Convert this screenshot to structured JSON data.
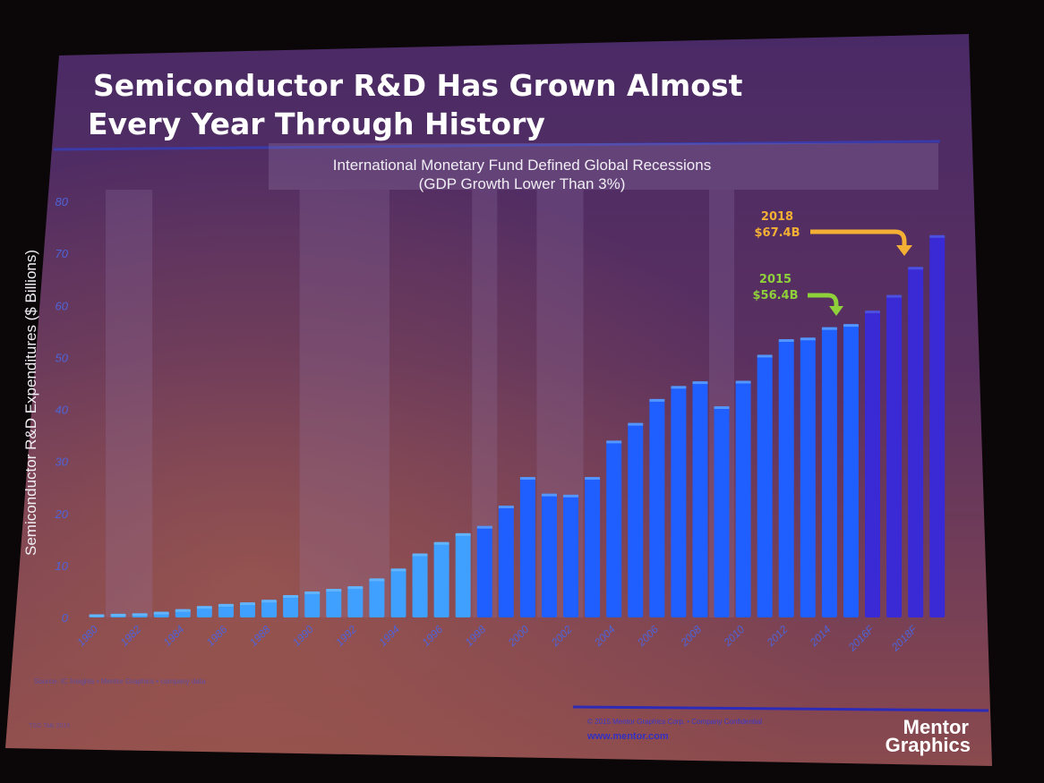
{
  "slide": {
    "title_line1": "Semiconductor R&D Has Grown Almost",
    "title_line2": "Every Year Through History",
    "source_note": "Source: IC Insights • Mentor Graphics • company data",
    "footer_copyright": "© 2015 Mentor Graphics Corp. • Company Confidential",
    "footer_url": "www.mentor.com",
    "footer_left": "TSG Talk 2015",
    "logo_line1": "Mentor",
    "logo_line2": "Graphics"
  },
  "colors": {
    "actual_bar": "#1f5eff",
    "actual_bar_light": "#3fa0ff",
    "forecast_bar": "#3a2ad6",
    "recession_band": "#9a7fb0",
    "title": "#ffffff",
    "callout_2018": "#f4b034",
    "callout_2015": "#8fd13a",
    "axis_text": "#4f63d8"
  },
  "chart_data": {
    "type": "bar",
    "title": "International Monetary Fund Defined Global Recessions",
    "subtitle": "(GDP Growth Lower Than 3%)",
    "ylabel": "Semiconductor R&D Expenditures ($ Billions)",
    "xlabel": "",
    "ylim": [
      0,
      80
    ],
    "yticks": [
      0,
      10,
      20,
      30,
      40,
      50,
      60,
      70,
      80
    ],
    "categories": [
      1980,
      1981,
      1982,
      1983,
      1984,
      1985,
      1986,
      1987,
      1988,
      1989,
      1990,
      1991,
      1992,
      1993,
      1994,
      1995,
      1996,
      1997,
      1998,
      1999,
      2000,
      2001,
      2002,
      2003,
      2004,
      2005,
      2006,
      2007,
      2008,
      2009,
      2010,
      2011,
      2012,
      2013,
      2014,
      2015,
      2016,
      2017,
      2018,
      2019
    ],
    "x_tick_labels": [
      "1980",
      "1982",
      "1984",
      "1986",
      "1988",
      "1990",
      "1992",
      "1994",
      "1996",
      "1998",
      "2000",
      "2002",
      "2004",
      "2006",
      "2008",
      "2010",
      "2012",
      "2014",
      "2016F",
      "2018F"
    ],
    "series": [
      {
        "values": [
          0.6,
          0.7,
          0.8,
          1.1,
          1.6,
          2.2,
          2.6,
          2.9,
          3.4,
          4.3,
          5.0,
          5.5,
          6.0,
          7.5,
          9.4,
          12.3,
          14.5,
          16.2,
          17.6,
          21.5,
          27.0,
          23.8,
          23.6,
          27.0,
          34.0,
          37.4,
          42.0,
          44.5,
          45.4,
          40.6,
          45.5,
          50.5,
          53.5,
          53.8,
          55.8,
          56.4,
          59.0,
          62.0,
          67.4,
          73.5
        ]
      }
    ],
    "forecast_from": 2016,
    "recession_periods": [
      [
        1981,
        1982
      ],
      [
        1990,
        1993
      ],
      [
        1998,
        1998
      ],
      [
        2001,
        2002
      ],
      [
        2009,
        2009
      ]
    ],
    "annotations": [
      {
        "year": 2018,
        "label_year": "2018",
        "label_value": "$67.4B"
      },
      {
        "year": 2015,
        "label_year": "2015",
        "label_value": "$56.4B"
      }
    ]
  }
}
